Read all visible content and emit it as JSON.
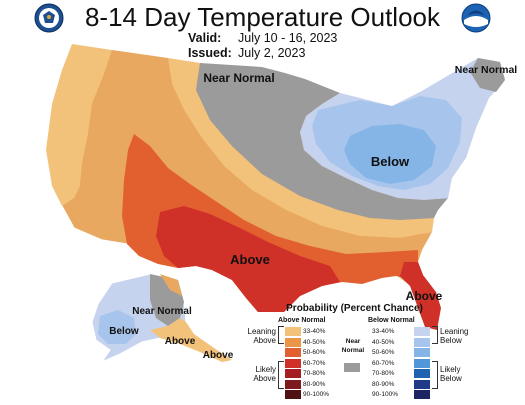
{
  "header": {
    "title": "8-14 Day Temperature Outlook",
    "valid_label": "Valid:",
    "valid_value": "July 10 - 16, 2023",
    "issued_label": "Issued:",
    "issued_value": "July 2, 2023"
  },
  "logos": {
    "left": "commerce-seal",
    "right": "noaa-emblem",
    "right_text": "NOAA"
  },
  "map": {
    "labels": {
      "near_normal_north": "Near Normal",
      "near_normal_northeast": "Near Normal",
      "below_midwest": "Below",
      "above_south": "Above",
      "above_florida": "Above",
      "below_alaska": "Below",
      "near_normal_alaska": "Near Normal",
      "above_alaska_south": "Above",
      "above_alaska_panhandle": "Above"
    },
    "colors": {
      "background": "#ffffff",
      "land_default": "#e8a860",
      "near_normal": "#9b9b9b",
      "border": "#ffffff"
    }
  },
  "legend": {
    "title": "Probability (Percent Chance)",
    "above_header": "Above Normal",
    "below_header": "Below Normal",
    "near_normal": "Near Normal",
    "leaning_above": "Leaning Above",
    "likely_above": "Likely Above",
    "leaning_below": "Leaning Below",
    "likely_below": "Likely Below",
    "above_bins": [
      {
        "label": "33-40%",
        "color": "#f2c27b"
      },
      {
        "label": "40-50%",
        "color": "#eb9647"
      },
      {
        "label": "50-60%",
        "color": "#e2602f"
      },
      {
        "label": "60-70%",
        "color": "#cf3028"
      },
      {
        "label": "70-80%",
        "color": "#a51e22"
      },
      {
        "label": "80-90%",
        "color": "#7e1a1e"
      },
      {
        "label": "90-100%",
        "color": "#4e1215"
      }
    ],
    "below_bins": [
      {
        "label": "33-40%",
        "color": "#c5d3ee"
      },
      {
        "label": "40-50%",
        "color": "#a7c5ec"
      },
      {
        "label": "50-60%",
        "color": "#84b5e6"
      },
      {
        "label": "60-70%",
        "color": "#4f97d8"
      },
      {
        "label": "70-80%",
        "color": "#1f62b0"
      },
      {
        "label": "80-90%",
        "color": "#203a88"
      },
      {
        "label": "90-100%",
        "color": "#1c2562"
      }
    ],
    "near_color": "#9b9b9b"
  }
}
